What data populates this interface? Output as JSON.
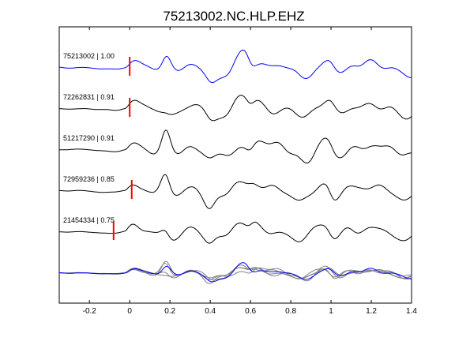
{
  "chart_data": {
    "type": "line",
    "title": "75213002.NC.HLP.EHZ",
    "xlabel": "",
    "ylabel": "",
    "xlim": [
      -0.35,
      1.4
    ],
    "x_ticks": [
      -0.2,
      0,
      0.2,
      0.4,
      0.6,
      0.8,
      1,
      1.2,
      1.4
    ],
    "x_tick_labels": [
      "-0.2",
      "0",
      "0.2",
      "0.4",
      "0.6",
      "0.8",
      "1",
      "1.2",
      "1.4"
    ],
    "y_ticks_shown": false,
    "grid": false,
    "legend": "none",
    "colors": {
      "reference_trace": "#0000ff",
      "other_traces": "#000000",
      "overlay_other": "#808080",
      "pick_marker": "#ff0000"
    },
    "series": [
      {
        "label": "75213002 | 1.00",
        "event_id": "75213002",
        "correlation": 1.0,
        "pick_time": 0.0,
        "color": "#0000ff"
      },
      {
        "label": "72262831 | 0.91",
        "event_id": "72262831",
        "correlation": 0.91,
        "pick_time": 0.0,
        "color": "#000000"
      },
      {
        "label": "51217290 | 0.91",
        "event_id": "51217290",
        "correlation": 0.91,
        "pick_time": null,
        "color": "#000000"
      },
      {
        "label": "72959236 | 0.85",
        "event_id": "72959236",
        "correlation": 0.85,
        "pick_time": 0.01,
        "color": "#000000"
      },
      {
        "label": "21454334 | 0.75",
        "event_id": "21454334",
        "correlation": 0.75,
        "pick_time": -0.08,
        "color": "#000000"
      }
    ]
  }
}
